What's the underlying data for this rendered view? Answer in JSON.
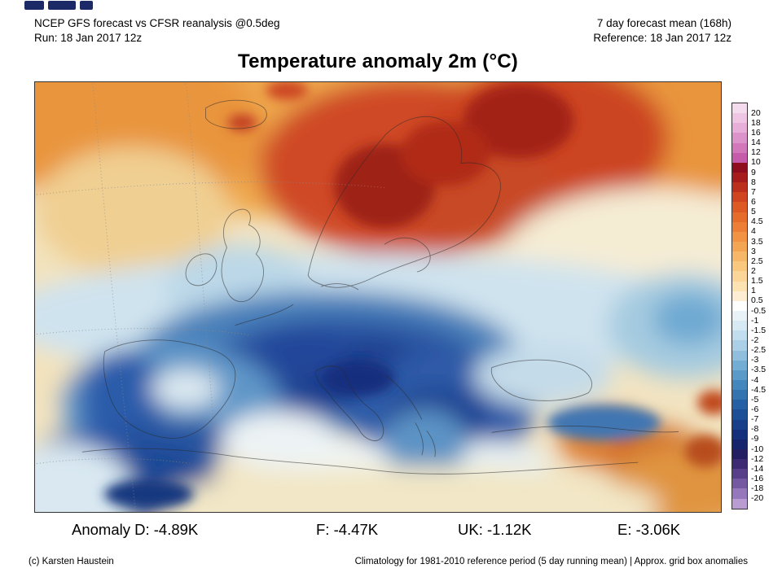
{
  "header": {
    "left_line1": "NCEP GFS forecast vs CFSR reanalysis @0.5deg",
    "left_line2": "Run: 18 Jan 2017 12z",
    "right_line1": "7 day forecast mean (168h)",
    "right_line2": "Reference: 18 Jan 2017 12z"
  },
  "title": "Temperature anomaly 2m (°C)",
  "colorbar": {
    "labels": [
      "20",
      "18",
      "16",
      "14",
      "12",
      "10",
      "9",
      "8",
      "7",
      "6",
      "5",
      "4.5",
      "4",
      "3.5",
      "3",
      "2.5",
      "2",
      "1.5",
      "1",
      "0.5",
      "-0.5",
      "-1",
      "-1.5",
      "-2",
      "-2.5",
      "-3",
      "-3.5",
      "-4",
      "-4.5",
      "-5",
      "-6",
      "-7",
      "-8",
      "-9",
      "-10",
      "-12",
      "-14",
      "-16",
      "-18",
      "-20"
    ],
    "colors": [
      "#f4dbee",
      "#eec6e4",
      "#e6aed8",
      "#dc93c9",
      "#d277ba",
      "#c65bab",
      "#8e0e20",
      "#a61b1b",
      "#bd2f1d",
      "#d0451f",
      "#dd5a24",
      "#e66c2c",
      "#ec7f35",
      "#f19342",
      "#f4a553",
      "#f7b768",
      "#fac77f",
      "#fcd598",
      "#fde2b2",
      "#fdedd2",
      "#ffffff",
      "#e9f3f7",
      "#d7eaf3",
      "#c2deee",
      "#aacfe6",
      "#90bfdd",
      "#74add3",
      "#5a9ac8",
      "#4487bc",
      "#3273b0",
      "#2660a4",
      "#1d4f97",
      "#173f8a",
      "#14307c",
      "#16246e",
      "#241f63",
      "#3c2a73",
      "#573f8a",
      "#7459a2",
      "#9578bb",
      "#b89cd2"
    ]
  },
  "anomaly": {
    "items": [
      "Anomaly D: -4.89K",
      "F: -4.47K",
      "UK: -1.12K",
      "E: -3.06K"
    ]
  },
  "footer": {
    "copyright": "(c) Karsten Haustein",
    "note": "Climatology for 1981-2010 reference period (5 day running mean) | Approx. grid box anomalies"
  }
}
